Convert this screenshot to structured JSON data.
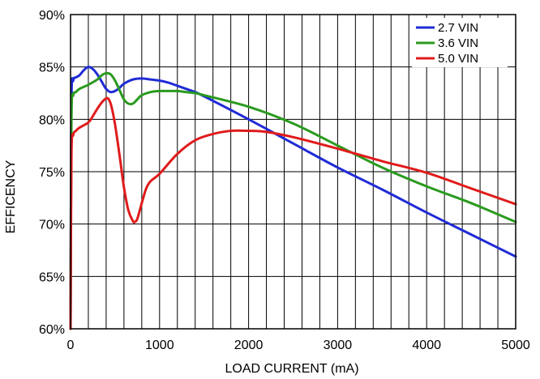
{
  "chart_data": {
    "type": "line",
    "xlabel": "LOAD CURRENT (mA)",
    "ylabel": "EFFICENCY",
    "xlim": [
      0,
      5000
    ],
    "ylim": [
      60,
      90
    ],
    "x_ticks": [
      0,
      1000,
      2000,
      3000,
      4000,
      5000
    ],
    "y_ticks": [
      60,
      65,
      70,
      75,
      80,
      85,
      90
    ],
    "x_tick_labels": [
      "0",
      "1000",
      "2000",
      "3000",
      "4000",
      "5000"
    ],
    "y_tick_labels": [
      "60%",
      "65%",
      "70%",
      "75%",
      "80%",
      "85%",
      "90%"
    ],
    "x_minor_step": 200,
    "y_minor_step": 5,
    "grid": true,
    "legend_position": "top-right",
    "series": [
      {
        "name": "2.7 VIN",
        "color": "#1f2bd6",
        "x": [
          0,
          10,
          30,
          60,
          100,
          150,
          200,
          250,
          300,
          350,
          400,
          450,
          500,
          550,
          600,
          700,
          800,
          900,
          1000,
          1100,
          1200,
          1300,
          1400,
          1500,
          2000,
          2500,
          3000,
          3500,
          4000,
          4500,
          5000
        ],
        "y": [
          60,
          81.5,
          83.7,
          84.0,
          84.2,
          84.7,
          85.0,
          84.8,
          84.3,
          83.6,
          82.9,
          82.6,
          82.7,
          83.0,
          83.4,
          83.8,
          83.9,
          83.8,
          83.7,
          83.5,
          83.2,
          82.9,
          82.6,
          82.2,
          80.0,
          77.7,
          75.4,
          73.3,
          71.1,
          69.0,
          66.9
        ]
      },
      {
        "name": "3.6 VIN",
        "color": "#2a9a1f",
        "x": [
          0,
          10,
          30,
          60,
          100,
          200,
          300,
          350,
          400,
          450,
          500,
          550,
          600,
          650,
          700,
          750,
          800,
          900,
          1000,
          1100,
          1200,
          1300,
          1400,
          1500,
          2000,
          2500,
          3000,
          3500,
          4000,
          4500,
          5000
        ],
        "y": [
          60,
          80.0,
          82.3,
          82.6,
          82.9,
          83.3,
          83.8,
          84.2,
          84.4,
          84.3,
          83.7,
          82.8,
          81.9,
          81.5,
          81.5,
          81.9,
          82.3,
          82.6,
          82.7,
          82.7,
          82.7,
          82.6,
          82.5,
          82.3,
          81.2,
          79.6,
          77.5,
          75.4,
          73.6,
          72.0,
          70.2
        ]
      },
      {
        "name": "5.0 VIN",
        "color": "#e01b1b",
        "x": [
          0,
          10,
          30,
          60,
          100,
          200,
          250,
          300,
          350,
          400,
          430,
          460,
          500,
          550,
          600,
          650,
          700,
          720,
          750,
          800,
          850,
          900,
          1000,
          1200,
          1400,
          1600,
          1800,
          2000,
          2200,
          2500,
          3000,
          3500,
          4000,
          4500,
          5000
        ],
        "y": [
          60,
          76.5,
          78.5,
          78.9,
          79.2,
          79.7,
          80.3,
          81.0,
          81.6,
          82.0,
          81.9,
          81.2,
          79.5,
          76.6,
          73.5,
          71.3,
          70.3,
          70.2,
          70.5,
          72.0,
          73.4,
          74.1,
          74.8,
          76.7,
          78.0,
          78.6,
          78.9,
          78.9,
          78.8,
          78.3,
          77.2,
          76.0,
          74.9,
          73.4,
          71.9
        ]
      }
    ]
  }
}
